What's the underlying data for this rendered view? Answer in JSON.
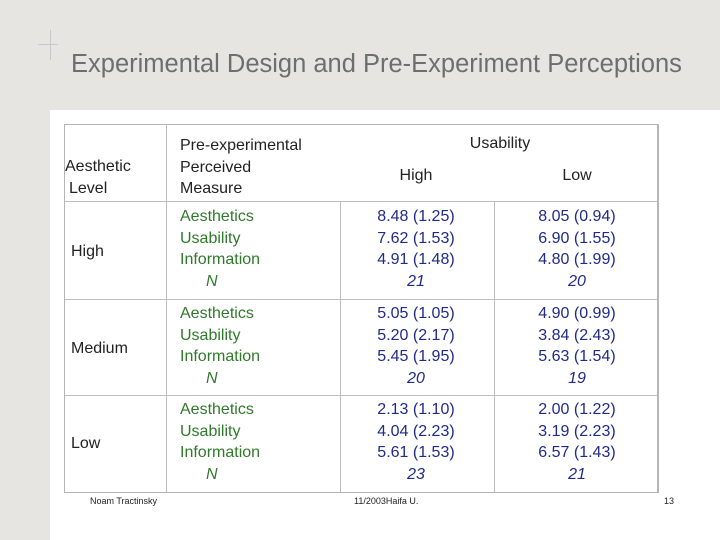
{
  "slide": {
    "title": "Experimental Design and Pre-Experiment Perceptions",
    "table": {
      "header": {
        "aesthetic_level": [
          "Aesthetic",
          "Level"
        ],
        "measure": [
          "Pre-experimental",
          "Perceived",
          "Measure"
        ],
        "usability": "Usability",
        "high": "High",
        "low": "Low"
      },
      "rows": [
        {
          "level": "High",
          "measures": [
            "Aesthetics",
            "Usability",
            "Information"
          ],
          "n_label": "N",
          "high_values": [
            "8.48 (1.25)",
            "7.62 (1.53)",
            "4.91 (1.48)"
          ],
          "high_n": "21",
          "low_values": [
            "8.05 (0.94)",
            "6.90 (1.55)",
            "4.80 (1.99)"
          ],
          "low_n": "20"
        },
        {
          "level": "Medium",
          "measures": [
            "Aesthetics",
            "Usability",
            "Information"
          ],
          "n_label": "N",
          "high_values": [
            "5.05 (1.05)",
            "5.20 (2.17)",
            "5.45 (1.95)"
          ],
          "high_n": "20",
          "low_values": [
            "4.90 (0.99)",
            "3.84 (2.43)",
            "5.63 (1.54)"
          ],
          "low_n": "19"
        },
        {
          "level": "Low",
          "measures": [
            "Aesthetics",
            "Usability",
            "Information"
          ],
          "n_label": "N",
          "high_values": [
            "2.13 (1.10)",
            "4.04 (2.23)",
            "5.61 (1.53)"
          ],
          "high_n": "23",
          "low_values": [
            "2.00 (1.22)",
            "3.19 (2.23)",
            "6.57 (1.43)"
          ],
          "low_n": "21"
        }
      ]
    },
    "footer": {
      "author": "Noam Tractinsky",
      "date_place": "11/2003Haifa U.",
      "page": "13"
    }
  }
}
